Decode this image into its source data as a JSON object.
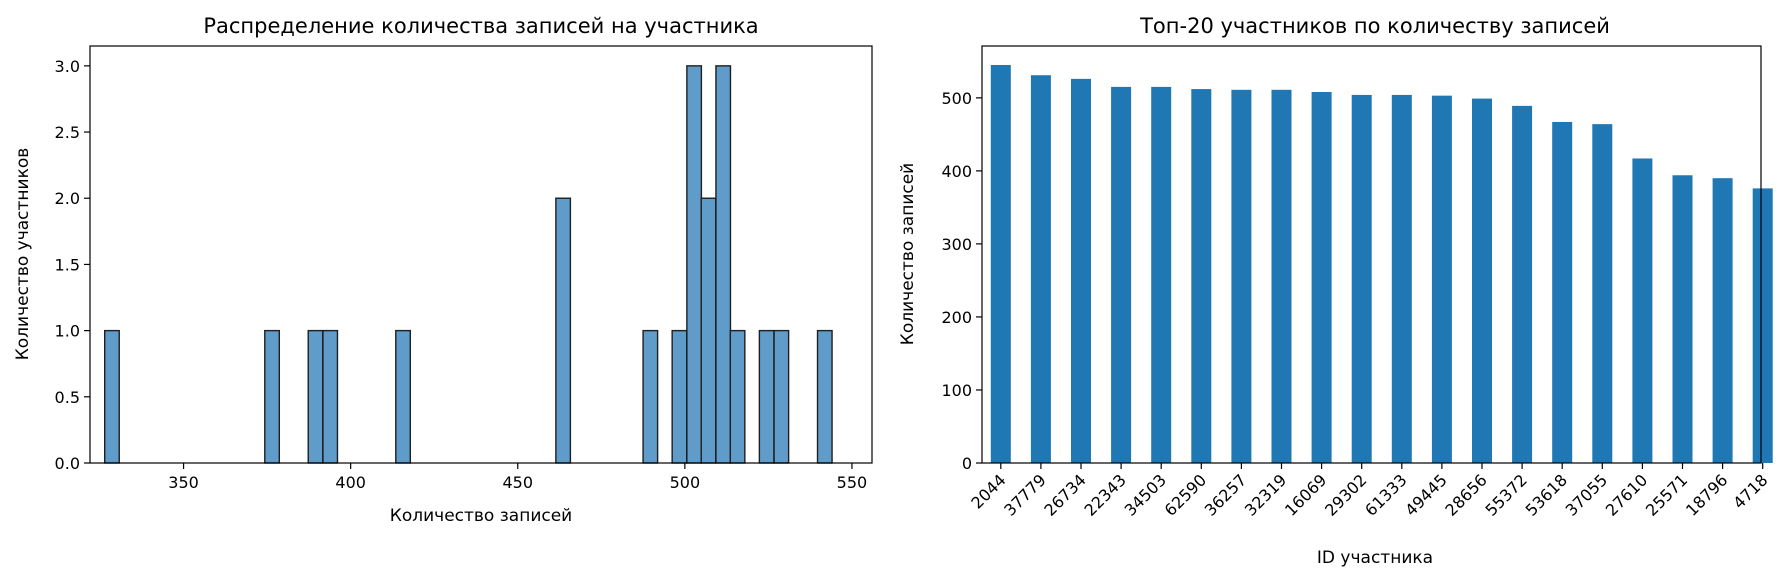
{
  "chart_data": [
    {
      "type": "bar",
      "subtype": "histogram",
      "title": "Распределение количества записей на участника",
      "xlabel": "Количество записей",
      "ylabel": "Количество участников",
      "xlim": [
        322,
        556
      ],
      "ylim": [
        0,
        3.15
      ],
      "xticks": [
        350,
        400,
        450,
        500,
        550
      ],
      "yticks": [
        0.0,
        0.5,
        1.0,
        1.5,
        2.0,
        2.5,
        3.0
      ],
      "ytick_labels": [
        "0.0",
        "0.5",
        "1.0",
        "1.5",
        "2.0",
        "2.5",
        "3.0"
      ],
      "bin_width": 4.35,
      "bins": [
        {
          "x0": 326.4,
          "count": 1
        },
        {
          "x0": 374.3,
          "count": 1
        },
        {
          "x0": 387.3,
          "count": 1
        },
        {
          "x0": 391.7,
          "count": 1
        },
        {
          "x0": 413.5,
          "count": 1
        },
        {
          "x0": 461.4,
          "count": 2
        },
        {
          "x0": 487.5,
          "count": 1
        },
        {
          "x0": 496.2,
          "count": 1
        },
        {
          "x0": 500.6,
          "count": 3
        },
        {
          "x0": 504.9,
          "count": 2
        },
        {
          "x0": 509.3,
          "count": 3
        },
        {
          "x0": 513.6,
          "count": 1
        },
        {
          "x0": 522.3,
          "count": 1
        },
        {
          "x0": 526.7,
          "count": 1
        },
        {
          "x0": 539.7,
          "count": 1
        }
      ],
      "bar_color": "#5f9cca",
      "edge_color": "#1f1f1f",
      "grid": false
    },
    {
      "type": "bar",
      "title": "Топ-20 участников по количеству записей",
      "xlabel": "ID участника",
      "ylabel": "Количество записей",
      "ylim": [
        0,
        571
      ],
      "yticks": [
        0,
        100,
        200,
        300,
        400,
        500
      ],
      "categories": [
        "2044",
        "37779",
        "26734",
        "22343",
        "34503",
        "62590",
        "36257",
        "32319",
        "16069",
        "29302",
        "61333",
        "49445",
        "28656",
        "55372",
        "53618",
        "37055",
        "27610",
        "25571",
        "18796",
        "4718"
      ],
      "values": [
        545,
        531,
        526,
        515,
        515,
        512,
        511,
        511,
        508,
        504,
        504,
        503,
        499,
        489,
        467,
        464,
        417,
        394,
        390,
        376
      ],
      "bar_color": "#1f77b4",
      "grid": false
    }
  ]
}
